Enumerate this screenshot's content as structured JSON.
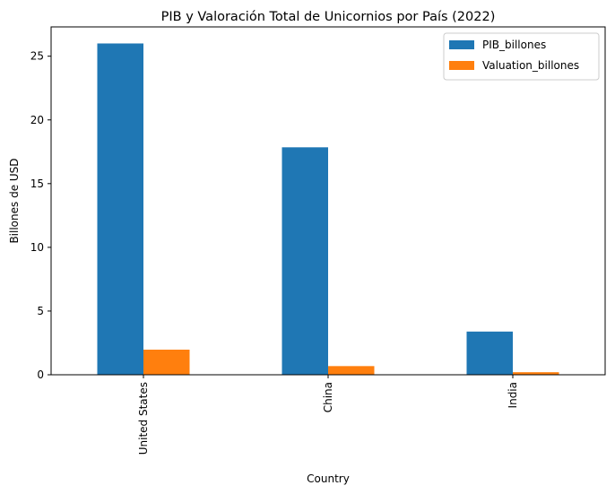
{
  "chart_data": {
    "type": "bar",
    "title": "PIB y Valoración Total de Unicornios por País (2022)",
    "xlabel": "Country",
    "ylabel": "Billones de USD",
    "categories": [
      "United States",
      "China",
      "India"
    ],
    "series": [
      {
        "name": "PIB_billones",
        "values": [
          26.0,
          17.85,
          3.39
        ],
        "color": "#1f77b4"
      },
      {
        "name": "Valuation_billones",
        "values": [
          1.97,
          0.68,
          0.2
        ],
        "color": "#ff7f0e"
      }
    ],
    "ylim": [
      0,
      27.3
    ],
    "yticks": [
      0,
      5,
      10,
      15,
      20,
      25
    ],
    "grid": false,
    "legend_position": "top-right"
  }
}
